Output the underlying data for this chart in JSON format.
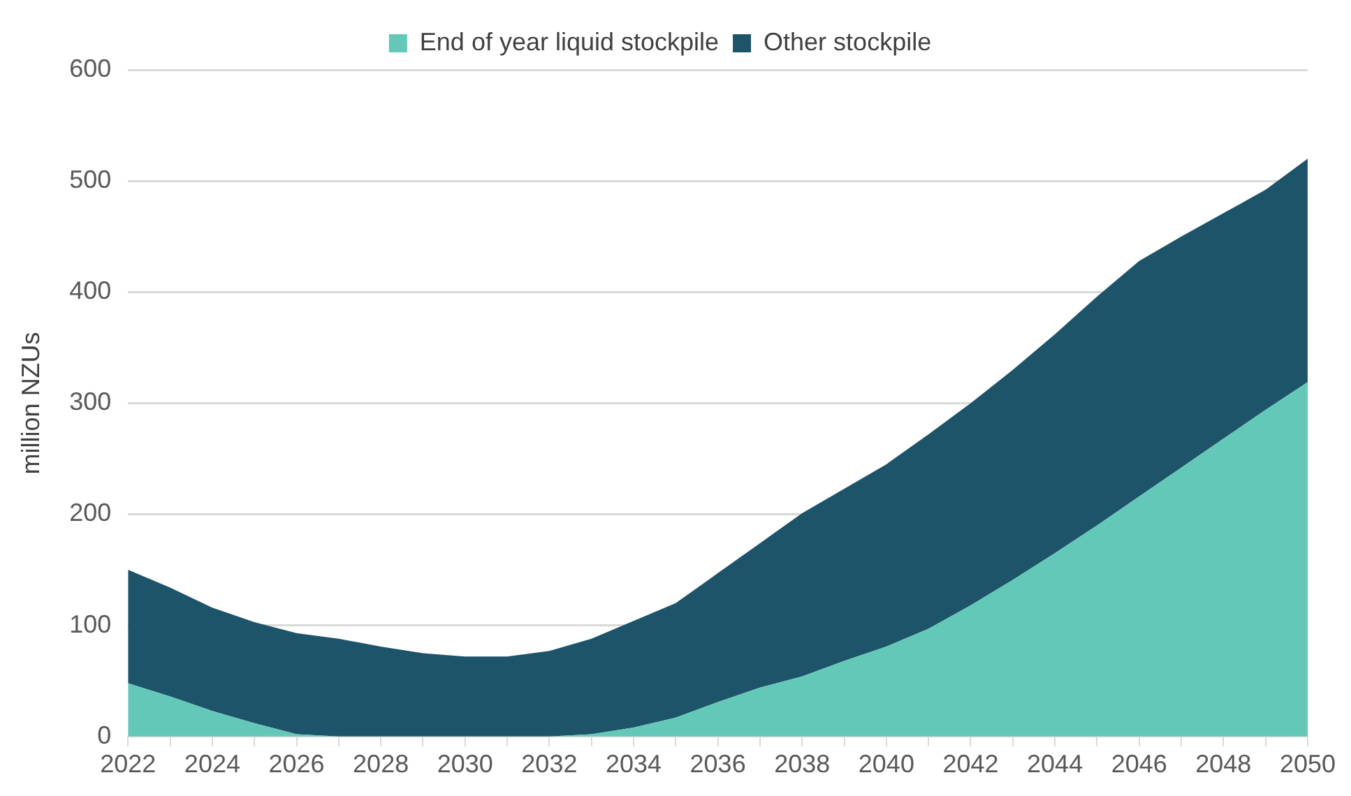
{
  "chart_data": {
    "type": "area",
    "ylabel": "million NZUs",
    "stacked": true,
    "x": [
      2022,
      2023,
      2024,
      2025,
      2026,
      2027,
      2028,
      2029,
      2030,
      2031,
      2032,
      2033,
      2034,
      2035,
      2036,
      2037,
      2038,
      2039,
      2040,
      2041,
      2042,
      2043,
      2044,
      2045,
      2046,
      2047,
      2048,
      2049,
      2050
    ],
    "series": [
      {
        "name": "End of year liquid stockpile",
        "color": "#64c8b8",
        "values": [
          48,
          36,
          23,
          12,
          2,
          0,
          0,
          0,
          0,
          0,
          0,
          2,
          8,
          17,
          31,
          44,
          54,
          68,
          81,
          97,
          118,
          141,
          165,
          190,
          216,
          242,
          268,
          294,
          319
        ]
      },
      {
        "name": "Other stockpile",
        "color": "#1d5469",
        "values": [
          102,
          98,
          93,
          91,
          91,
          88,
          81,
          75,
          72,
          72,
          77,
          86,
          96,
          103,
          116,
          130,
          147,
          155,
          164,
          175,
          182,
          189,
          197,
          206,
          212,
          208,
          203,
          198,
          201
        ]
      }
    ],
    "xlim": [
      2022,
      2050
    ],
    "xticks": [
      2022,
      {
        "value": 2023,
        "label": null
      },
      2024,
      {
        "value": 2025,
        "label": null
      },
      2026,
      {
        "value": 2027,
        "label": null
      },
      2028,
      {
        "value": 2029,
        "label": null
      },
      2030,
      {
        "value": 2031,
        "label": null
      },
      2032,
      {
        "value": 2033,
        "label": null
      },
      2034,
      {
        "value": 2035,
        "label": null
      },
      2036,
      {
        "value": 2037,
        "label": null
      },
      2038,
      {
        "value": 2039,
        "label": null
      },
      2040,
      {
        "value": 2041,
        "label": null
      },
      2042,
      {
        "value": 2043,
        "label": null
      },
      2044,
      {
        "value": 2045,
        "label": null
      },
      2046,
      {
        "value": 2047,
        "label": null
      },
      2048,
      {
        "value": 2049,
        "label": null
      },
      2050
    ],
    "ylim": [
      0,
      600
    ],
    "yticks": [
      0,
      100,
      200,
      300,
      400,
      500,
      600
    ],
    "grid": "y",
    "legend": "top"
  }
}
